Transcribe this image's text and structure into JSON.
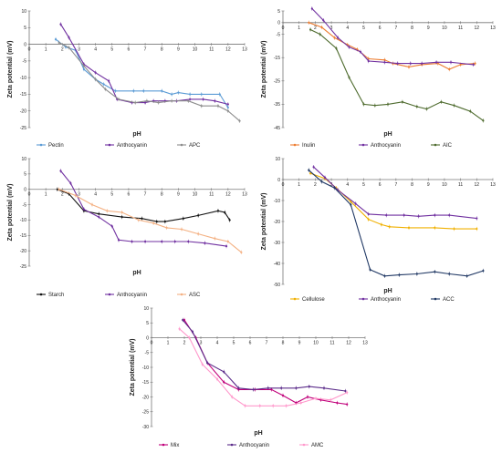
{
  "chart_data": [
    {
      "type": "line",
      "xlabel": "pH",
      "ylabel": "Zeta potential (mV)",
      "xlim": [
        0,
        13
      ],
      "ylim": [
        -25,
        10
      ],
      "xticks": [
        0,
        1,
        2,
        3,
        4,
        5,
        6,
        7,
        8,
        9,
        10,
        11,
        12,
        13
      ],
      "yticks": [
        10,
        5,
        0,
        -5,
        -10,
        -15,
        -20,
        -25
      ],
      "legend_position": "bottom",
      "series": [
        {
          "name": "Pectin",
          "color": "#5b9bd5",
          "x": [
            1.6,
            2.2,
            2.8,
            3.3,
            4.0,
            4.5,
            5.2,
            6.3,
            6.9,
            8.0,
            8.6,
            9.0,
            9.7,
            10.4,
            11.5,
            12.0
          ],
          "y": [
            1.5,
            -0.8,
            -1.8,
            -7.5,
            -10.5,
            -12.0,
            -14.0,
            -14.0,
            -14.0,
            -14.0,
            -15.0,
            -14.5,
            -15.0,
            -15.0,
            -15.0,
            -19.0
          ]
        },
        {
          "name": "Anthocyanin",
          "color": "#7030a0",
          "x": [
            1.9,
            2.4,
            3.3,
            4.0,
            4.8,
            5.3,
            6.2,
            7.0,
            7.5,
            8.2,
            8.9,
            9.7,
            10.5,
            11.2,
            12.0
          ],
          "y": [
            6.0,
            2.0,
            -6.0,
            -8.5,
            -11.0,
            -16.5,
            -17.5,
            -17.5,
            -17.0,
            -17.0,
            -17.0,
            -16.5,
            -16.5,
            -17.0,
            -18.0
          ]
        },
        {
          "name": "APC",
          "color": "#8c8c8c",
          "x": [
            1.8,
            2.4,
            3.3,
            4.0,
            4.6,
            5.4,
            6.4,
            7.1,
            7.8,
            8.6,
            9.6,
            10.4,
            11.4,
            12.0,
            12.7
          ],
          "y": [
            0.5,
            -1.0,
            -6.5,
            -10.5,
            -13.5,
            -16.5,
            -17.5,
            -17.0,
            -17.5,
            -17.0,
            -17.0,
            -18.5,
            -18.5,
            -20.0,
            -23.0
          ]
        }
      ]
    },
    {
      "type": "line",
      "xlabel": "pH",
      "ylabel": "Zeta potential (mV)",
      "xlim": [
        0,
        13
      ],
      "ylim": [
        -45,
        5
      ],
      "xticks": [
        0,
        1,
        2,
        3,
        4,
        5,
        6,
        7,
        8,
        9,
        10,
        11,
        12,
        13
      ],
      "yticks": [
        5,
        0,
        -5,
        -15,
        -25,
        -35,
        -45
      ],
      "legend_position": "bottom",
      "series": [
        {
          "name": "Inulin",
          "color": "#ed7d31",
          "x": [
            1.6,
            2.4,
            3.2,
            4.0,
            4.6,
            5.3,
            6.3,
            6.8,
            7.8,
            8.6,
            9.6,
            10.3,
            11.0,
            11.9
          ],
          "y": [
            0.0,
            -2.0,
            -6.5,
            -9.5,
            -11.5,
            -15.5,
            -16.0,
            -17.5,
            -19.0,
            -18.0,
            -17.5,
            -20.0,
            -18.0,
            -17.5
          ]
        },
        {
          "name": "Anthocyanin",
          "color": "#7030a0",
          "x": [
            1.8,
            2.5,
            3.4,
            4.1,
            4.8,
            5.3,
            6.3,
            7.1,
            7.9,
            8.6,
            9.5,
            10.4,
            11.8
          ],
          "y": [
            6.0,
            1.0,
            -6.5,
            -10.5,
            -12.5,
            -16.5,
            -17.0,
            -17.5,
            -17.5,
            -17.5,
            -17.0,
            -17.0,
            -18.0
          ]
        },
        {
          "name": "AIC",
          "color": "#4e6b2e",
          "x": [
            1.7,
            2.3,
            3.3,
            4.1,
            5.0,
            5.7,
            6.5,
            7.4,
            8.3,
            8.9,
            9.8,
            10.6,
            11.6,
            12.4
          ],
          "y": [
            -3.0,
            -5.0,
            -11.0,
            -23.5,
            -35.0,
            -35.5,
            -35.0,
            -34.0,
            -36.0,
            -37.0,
            -34.0,
            -35.5,
            -38.0,
            -42.0
          ]
        }
      ]
    },
    {
      "type": "line",
      "xlabel": "pH",
      "ylabel": "Zeta potential (mV)",
      "xlim": [
        0,
        13
      ],
      "ylim": [
        -25,
        10
      ],
      "xticks": [
        0,
        1,
        2,
        3,
        4,
        5,
        6,
        7,
        8,
        9,
        10,
        11,
        12,
        13
      ],
      "yticks": [
        10,
        5,
        0,
        -5,
        -10,
        -15,
        -20,
        -25
      ],
      "legend_position": "bottom",
      "series": [
        {
          "name": "Starch",
          "color": "#111111",
          "x": [
            1.7,
            2.4,
            3.3,
            4.2,
            5.6,
            6.8,
            7.7,
            8.2,
            9.3,
            10.2,
            11.4,
            11.8,
            12.1
          ],
          "y": [
            0.0,
            -1.5,
            -7.0,
            -8.0,
            -9.0,
            -9.5,
            -10.5,
            -10.5,
            -9.5,
            -8.5,
            -7.0,
            -7.5,
            -10.0
          ]
        },
        {
          "name": "Anthocyanin",
          "color": "#7030a0",
          "x": [
            1.9,
            2.5,
            3.3,
            4.2,
            5.0,
            5.4,
            6.2,
            7.0,
            8.0,
            8.8,
            9.6,
            10.6,
            11.9
          ],
          "y": [
            6.0,
            2.0,
            -6.5,
            -9.0,
            -12.0,
            -16.5,
            -17.0,
            -17.0,
            -17.0,
            -17.0,
            -17.0,
            -17.5,
            -18.5
          ]
        },
        {
          "name": "ASC",
          "color": "#f4b183",
          "x": [
            1.8,
            2.8,
            3.8,
            4.7,
            5.6,
            6.6,
            7.5,
            8.3,
            9.2,
            10.2,
            11.2,
            12.0,
            12.8
          ],
          "y": [
            0.0,
            -2.0,
            -5.0,
            -7.0,
            -7.5,
            -10.0,
            -11.0,
            -12.5,
            -13.0,
            -14.5,
            -16.0,
            -17.0,
            -20.5
          ]
        }
      ]
    },
    {
      "type": "line",
      "xlabel": "pH",
      "ylabel": "Zeta potential (mV)",
      "xlim": [
        0,
        13
      ],
      "ylim": [
        -50,
        10
      ],
      "xticks": [
        0,
        1,
        2,
        3,
        4,
        5,
        6,
        7,
        8,
        9,
        10,
        11,
        12,
        13
      ],
      "yticks": [
        10,
        0,
        -10,
        -20,
        -30,
        -40,
        -50
      ],
      "legend_position": "bottom",
      "series": [
        {
          "name": "Cellulose",
          "color": "#f0b000",
          "x": [
            1.7,
            2.6,
            3.3,
            4.2,
            5.3,
            6.1,
            6.6,
            7.8,
            9.4,
            10.6,
            12.0
          ],
          "y": [
            3.0,
            0.5,
            -4.0,
            -10.5,
            -19.0,
            -21.5,
            -22.5,
            -23.0,
            -23.0,
            -23.5,
            -23.5
          ]
        },
        {
          "name": "Anthocyanin",
          "color": "#7030a0",
          "x": [
            1.9,
            2.6,
            3.4,
            4.5,
            5.3,
            6.4,
            7.5,
            8.4,
            9.4,
            10.3,
            12.0
          ],
          "y": [
            6.0,
            1.0,
            -5.0,
            -11.5,
            -16.5,
            -17.0,
            -17.0,
            -17.5,
            -17.0,
            -17.0,
            -18.5
          ]
        },
        {
          "name": "ACC",
          "color": "#203864",
          "x": [
            1.6,
            2.4,
            3.2,
            4.2,
            5.4,
            6.3,
            7.2,
            8.3,
            9.4,
            10.3,
            11.4,
            12.4
          ],
          "y": [
            4.5,
            -1.0,
            -4.0,
            -12.0,
            -43.0,
            -46.0,
            -45.5,
            -45.0,
            -44.0,
            -45.0,
            -46.0,
            -43.5
          ]
        }
      ]
    },
    {
      "type": "line",
      "xlabel": "pH",
      "ylabel": "Zeta potential (mV)",
      "xlim": [
        0,
        13
      ],
      "ylim": [
        -30,
        10
      ],
      "xticks": [
        0,
        1,
        2,
        3,
        4,
        5,
        6,
        7,
        8,
        9,
        10,
        11,
        12,
        13
      ],
      "yticks": [
        10,
        5,
        0,
        -5,
        -10,
        -15,
        -20,
        -25,
        -30
      ],
      "legend_position": "bottom",
      "series": [
        {
          "name": "Mix",
          "color": "#c0007a",
          "x": [
            2.0,
            2.7,
            3.4,
            4.4,
            5.3,
            6.3,
            7.3,
            8.0,
            8.8,
            9.5,
            10.3,
            11.3,
            11.9
          ],
          "y": [
            6.0,
            0.0,
            -8.5,
            -15.0,
            -17.5,
            -17.5,
            -17.5,
            -19.5,
            -22.0,
            -20.0,
            -21.0,
            -22.0,
            -22.5
          ]
        },
        {
          "name": "Anthocyanin",
          "color": "#5b2c8a",
          "x": [
            1.9,
            2.5,
            3.4,
            4.4,
            5.3,
            6.2,
            7.1,
            7.9,
            8.8,
            9.6,
            10.5,
            11.8
          ],
          "y": [
            6.0,
            2.0,
            -8.5,
            -11.5,
            -17.0,
            -17.5,
            -17.0,
            -17.0,
            -17.0,
            -16.5,
            -17.0,
            -18.0
          ]
        },
        {
          "name": "AMC",
          "color": "#ff99cc",
          "x": [
            1.7,
            2.3,
            3.1,
            4.0,
            4.9,
            5.7,
            6.6,
            7.4,
            8.2,
            9.1,
            10.0,
            10.9,
            11.9
          ],
          "y": [
            3.0,
            0.0,
            -9.0,
            -14.0,
            -20.0,
            -23.0,
            -23.0,
            -23.0,
            -23.0,
            -22.0,
            -20.5,
            -21.0,
            -18.5
          ]
        }
      ]
    }
  ]
}
